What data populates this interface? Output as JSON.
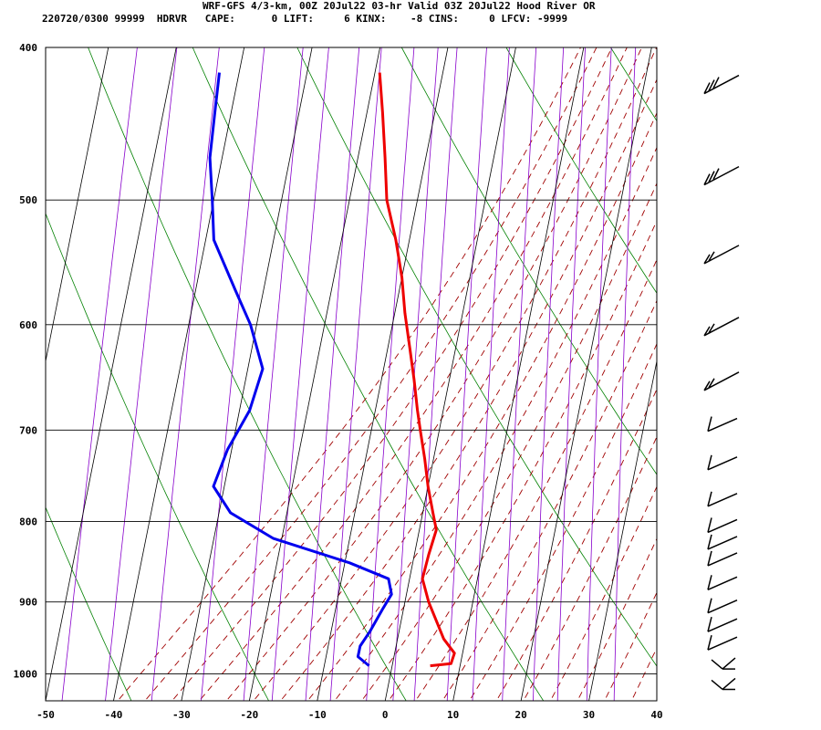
{
  "header": {
    "title": "WRF-GFS 4/3-km, 00Z 20Jul22 03-hr Valid 03Z 20Jul22 Hood River OR",
    "params": "220720/0300 99999  HDRVR   CAPE:      0 LIFT:     6 KINX:    -8 CINS:     0 LFCV: -9999"
  },
  "chart_data": {
    "type": "line",
    "skew_t": true,
    "title": "WRF-GFS 4/3-km, 00Z 20Jul22 03-hr Valid 03Z 20Jul22 Hood River OR",
    "xlabel": "",
    "ylabel": "",
    "xlim": [
      -50,
      40
    ],
    "ylim": [
      1040,
      400
    ],
    "pressure_ticks": [
      400,
      500,
      600,
      700,
      800,
      900,
      1000
    ],
    "temperature_ticks": [
      -50,
      -40,
      -30,
      -20,
      -10,
      0,
      10,
      20,
      30,
      40
    ],
    "series": [
      {
        "color": "#ee0000",
        "points": [
          [
            -19.3,
            415
          ],
          [
            -17.7,
            440
          ],
          [
            -16,
            470
          ],
          [
            -14.5,
            500
          ],
          [
            -12,
            530
          ],
          [
            -10,
            560
          ],
          [
            -8.5,
            590
          ],
          [
            -6.8,
            620
          ],
          [
            -5.2,
            650
          ],
          [
            -3.8,
            680
          ],
          [
            -2.8,
            700
          ],
          [
            -1.3,
            730
          ],
          [
            0,
            760
          ],
          [
            1.5,
            790
          ],
          [
            2.5,
            810
          ],
          [
            2.1,
            840
          ],
          [
            1.9,
            870
          ],
          [
            3.5,
            900
          ],
          [
            5.5,
            930
          ],
          [
            6.8,
            950
          ],
          [
            8.8,
            970
          ],
          [
            8.6,
            985
          ],
          [
            5.6,
            988
          ]
        ]
      },
      {
        "color": "#0000ee",
        "points": [
          [
            -42.9,
            415
          ],
          [
            -42.4,
            440
          ],
          [
            -41.8,
            470
          ],
          [
            -40.2,
            500
          ],
          [
            -38.8,
            530
          ],
          [
            -34.2,
            570
          ],
          [
            -30.9,
            600
          ],
          [
            -27.8,
            640
          ],
          [
            -28.5,
            680
          ],
          [
            -30.6,
            720
          ],
          [
            -31.6,
            760
          ],
          [
            -28.3,
            790
          ],
          [
            -21.3,
            820
          ],
          [
            -9.3,
            850
          ],
          [
            -3.1,
            870
          ],
          [
            -2.2,
            890
          ],
          [
            -3.1,
            910
          ],
          [
            -4.3,
            940
          ],
          [
            -5.3,
            960
          ],
          [
            -5.3,
            975
          ],
          [
            -3.4,
            988
          ]
        ]
      }
    ],
    "wind_barbs": [
      {
        "pressure": 420,
        "flag": "L1"
      },
      {
        "pressure": 480,
        "flag": "L1"
      },
      {
        "pressure": 540,
        "flag": "S2"
      },
      {
        "pressure": 600,
        "flag": "S2"
      },
      {
        "pressure": 650,
        "flag": "S2"
      },
      {
        "pressure": 690,
        "flag": "S1"
      },
      {
        "pressure": 730,
        "flag": "S1"
      },
      {
        "pressure": 770,
        "flag": "S1"
      },
      {
        "pressure": 800,
        "flag": "S1"
      },
      {
        "pressure": 820,
        "flag": "S1"
      },
      {
        "pressure": 840,
        "flag": "S1"
      },
      {
        "pressure": 870,
        "flag": "S1"
      },
      {
        "pressure": 900,
        "flag": "S1"
      },
      {
        "pressure": 925,
        "flag": "S1"
      },
      {
        "pressure": 950,
        "flag": "S1"
      },
      {
        "pressure": 990,
        "flag": "C"
      },
      {
        "pressure": 1020,
        "flag": "C"
      }
    ],
    "colors": {
      "isotherms": "#000000",
      "dry_adiabats": "#008000",
      "moist_adiabats": "#a00000",
      "mixing_ratio": "#8800cc",
      "temperature": "#ee0000",
      "dewpoint": "#0000ee"
    }
  }
}
